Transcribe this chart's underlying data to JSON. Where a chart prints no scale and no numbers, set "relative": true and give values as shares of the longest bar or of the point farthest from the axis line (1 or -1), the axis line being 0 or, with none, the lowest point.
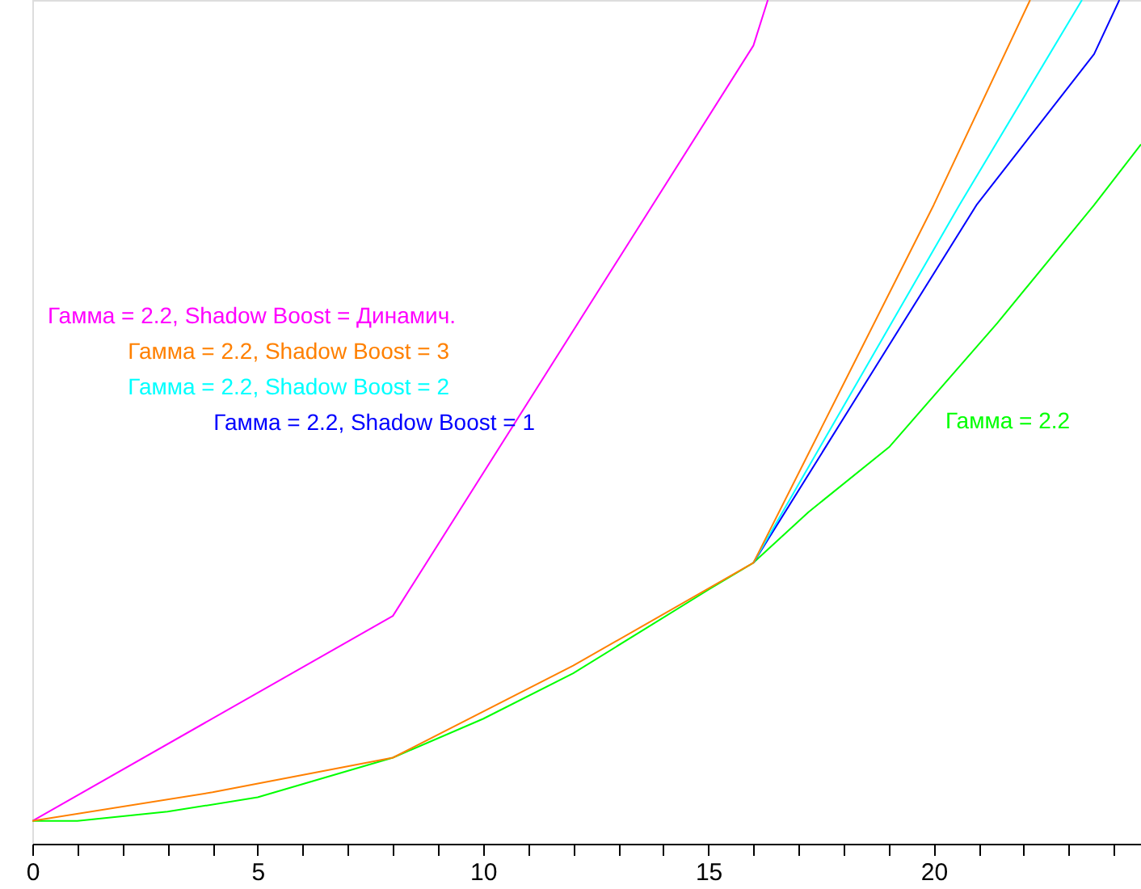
{
  "chart_data": {
    "type": "line",
    "relative": true,
    "legend": "left",
    "grid": false,
    "marker": "none",
    "line_style": "solid",
    "xlim": [
      0,
      24.6
    ],
    "xticks": [
      0,
      {
        "value": 1,
        "label": null
      },
      {
        "value": 2,
        "label": null
      },
      {
        "value": 3,
        "label": null
      },
      {
        "value": 4,
        "label": null
      },
      5,
      {
        "value": 6,
        "label": null
      },
      {
        "value": 7,
        "label": null
      },
      {
        "value": 8,
        "label": null
      },
      {
        "value": 9,
        "label": null
      },
      10,
      {
        "value": 11,
        "label": null
      },
      {
        "value": 12,
        "label": null
      },
      {
        "value": 13,
        "label": null
      },
      {
        "value": 14,
        "label": null
      },
      15,
      {
        "value": 16,
        "label": null
      },
      {
        "value": 17,
        "label": null
      },
      {
        "value": 18,
        "label": null
      },
      {
        "value": 19,
        "label": null
      },
      20,
      {
        "value": 21,
        "label": null
      },
      {
        "value": 22,
        "label": null
      },
      {
        "value": 23,
        "label": null
      },
      {
        "value": 24,
        "label": null
      }
    ],
    "series": [
      {
        "name": "Гамма = 2.2, Shadow Boost = Динамич.",
        "color": "#ff00ff",
        "x": [
          0,
          8,
          16,
          16.32
        ],
        "values": [
          0.027,
          0.27,
          0.946,
          1.0
        ]
      },
      {
        "name": "Гамма = 2.2, Shadow Boost = 3",
        "color": "#ff8000",
        "x": [
          0,
          4,
          8,
          12,
          16,
          20,
          22.14
        ],
        "values": [
          0.027,
          0.061,
          0.102,
          0.211,
          0.333,
          0.757,
          1.0
        ]
      },
      {
        "name": "Гамма = 2.2, Shadow Boost = 2",
        "color": "#00ffff",
        "x": [
          16,
          20.57,
          23.29
        ],
        "values": [
          0.333,
          0.757,
          1.0
        ]
      },
      {
        "name": "Гамма = 2.2, Shadow Boost = 1",
        "color": "#0000ff",
        "x": [
          16,
          20.95,
          23.56,
          24.12
        ],
        "values": [
          0.333,
          0.757,
          0.936,
          1.0
        ]
      },
      {
        "name": "Гамма = 2.2",
        "color": "#00ff00",
        "x": [
          0,
          1,
          3,
          5,
          8,
          10,
          12,
          15,
          16,
          17.22,
          19.01,
          21.41,
          23.56,
          24.6
        ],
        "values": [
          0.027,
          0.027,
          0.038,
          0.055,
          0.102,
          0.148,
          0.202,
          0.301,
          0.333,
          0.393,
          0.47,
          0.617,
          0.757,
          0.829
        ]
      }
    ]
  }
}
